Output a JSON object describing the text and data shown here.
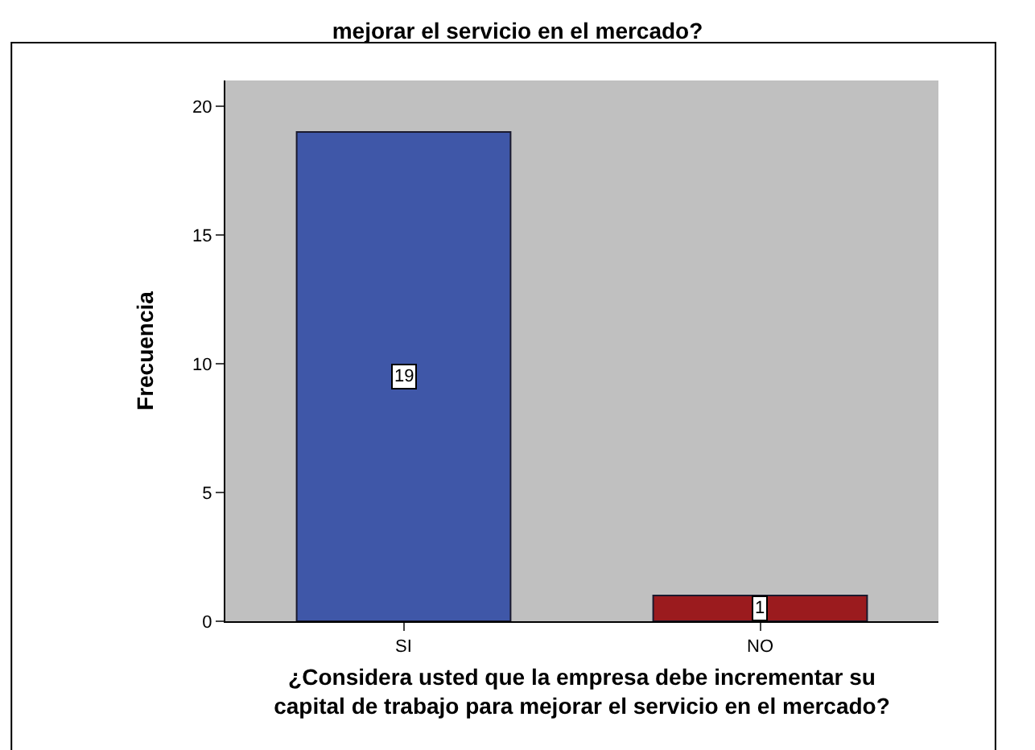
{
  "chart_data": {
    "type": "bar",
    "title": "mejorar el servicio en el mercado?",
    "categories": [
      "SI",
      "NO"
    ],
    "values": [
      19,
      1
    ],
    "colors": [
      "#3f57a8",
      "#9b1b1e"
    ],
    "xlabel": "¿Considera usted que la empresa debe incrementar su capital de trabajo para mejorar el servicio en el mercado?",
    "ylabel": "Frecuencia",
    "ylim": [
      0,
      21
    ],
    "yticks": [
      0,
      5,
      10,
      15,
      20
    ],
    "data_labels": true,
    "grid": false,
    "legend": false
  }
}
